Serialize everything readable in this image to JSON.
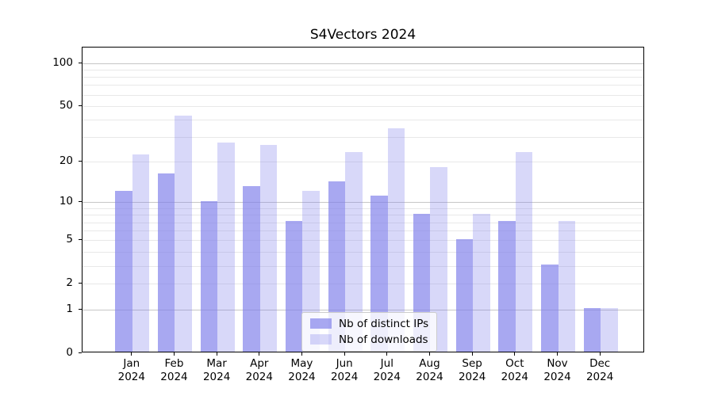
{
  "title": "S4Vectors 2024",
  "legend": {
    "items": [
      {
        "label": "Nb of distinct IPs",
        "color": "rgba(127,127,234,0.68)"
      },
      {
        "label": "Nb of downloads",
        "color": "rgba(127,127,234,0.30)"
      }
    ]
  },
  "y_axis": {
    "tick_labels": [
      "0",
      "1",
      "2",
      "5",
      "10",
      "20",
      "50",
      "100"
    ],
    "tick_values": [
      0,
      1,
      2,
      5,
      10,
      20,
      50,
      100
    ],
    "minor_grid_values": [
      2,
      3,
      4,
      5,
      6,
      7,
      8,
      9,
      20,
      30,
      40,
      50,
      60,
      70,
      80,
      90
    ],
    "major_grid_values": [
      1,
      10,
      100
    ],
    "minor_grid_color": "#e8e8e8",
    "major_grid_color": "#c6c6c6"
  },
  "x_axis": {
    "months": [
      "Jan",
      "Feb",
      "Mar",
      "Apr",
      "May",
      "Jun",
      "Jul",
      "Aug",
      "Sep",
      "Oct",
      "Nov",
      "Dec"
    ],
    "year": "2024"
  },
  "chart_data": {
    "type": "bar",
    "title": "S4Vectors 2024",
    "categories": [
      "Jan 2024",
      "Feb 2024",
      "Mar 2024",
      "Apr 2024",
      "May 2024",
      "Jun 2024",
      "Jul 2024",
      "Aug 2024",
      "Sep 2024",
      "Oct 2024",
      "Nov 2024",
      "Dec 2024"
    ],
    "series": [
      {
        "name": "Nb of distinct IPs",
        "color": "rgba(127,127,234,0.68)",
        "values": [
          12,
          16,
          10,
          13,
          7,
          14,
          11,
          8,
          5,
          7,
          3,
          1
        ]
      },
      {
        "name": "Nb of downloads",
        "color": "rgba(127,127,234,0.30)",
        "values": [
          22,
          42,
          27,
          26,
          12,
          23,
          34,
          18,
          8,
          23,
          7,
          1
        ]
      }
    ],
    "xlabel": "",
    "ylabel": "",
    "y_scale": "log10(1+v)",
    "ylim": [
      0,
      128
    ],
    "y_tick_values": [
      0,
      1,
      2,
      5,
      10,
      20,
      50,
      100
    ],
    "grid": "horizontal",
    "legend_position": "inside-bottom-center",
    "bar_grouping": "adjacent-pairs"
  }
}
